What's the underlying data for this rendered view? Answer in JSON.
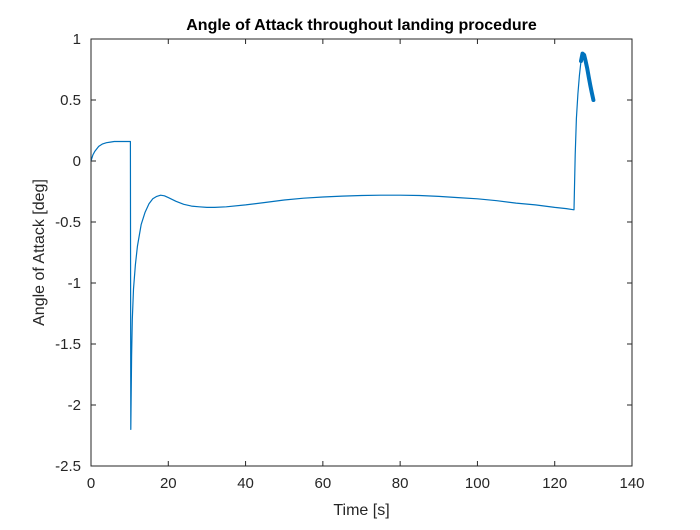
{
  "chart_data": {
    "type": "line",
    "title": "Angle of Attack throughout landing procedure",
    "xlabel": "Time [s]",
    "ylabel": "Angle of Attack [deg]",
    "xlim": [
      0,
      140
    ],
    "ylim": [
      -2.5,
      1
    ],
    "xticks": [
      0,
      20,
      40,
      60,
      80,
      100,
      120,
      140
    ],
    "yticks": [
      -2.5,
      -2,
      -1.5,
      -1,
      -0.5,
      0,
      0.5,
      1
    ],
    "xtick_labels": [
      "0",
      "20",
      "40",
      "60",
      "80",
      "100",
      "120",
      "140"
    ],
    "ytick_labels": [
      "-2.5",
      "-2",
      "-1.5",
      "-1",
      "-0.5",
      "0",
      "0.5",
      "1"
    ],
    "grid": false,
    "line_color": "#0072BD",
    "series": [
      {
        "x": [
          0,
          0.5,
          1,
          2,
          3,
          4,
          5,
          6,
          7,
          8,
          9,
          10,
          10.2,
          10.3,
          10.5,
          10.7,
          11,
          11.5,
          12,
          13,
          14,
          15,
          16,
          17,
          18,
          19,
          20,
          22,
          24,
          26,
          28,
          30,
          32,
          35,
          40,
          45,
          50,
          55,
          60,
          65,
          70,
          75,
          80,
          85,
          90,
          95,
          100,
          105,
          110,
          115,
          120,
          123,
          125,
          125.3,
          125.6,
          126,
          126.4,
          126.8,
          127.2,
          127.6,
          128,
          128.4,
          128.8,
          129.2,
          129.6,
          130
        ],
        "y": [
          0.0,
          0.05,
          0.08,
          0.12,
          0.14,
          0.15,
          0.155,
          0.16,
          0.16,
          0.16,
          0.16,
          0.16,
          0.16,
          -2.2,
          -1.6,
          -1.3,
          -1.05,
          -0.85,
          -0.7,
          -0.52,
          -0.42,
          -0.35,
          -0.31,
          -0.29,
          -0.28,
          -0.285,
          -0.3,
          -0.33,
          -0.355,
          -0.37,
          -0.375,
          -0.38,
          -0.38,
          -0.375,
          -0.36,
          -0.34,
          -0.32,
          -0.305,
          -0.295,
          -0.288,
          -0.283,
          -0.28,
          -0.28,
          -0.283,
          -0.29,
          -0.3,
          -0.31,
          -0.325,
          -0.345,
          -0.36,
          -0.38,
          -0.39,
          -0.4,
          0.05,
          0.35,
          0.55,
          0.7,
          0.82,
          0.88,
          0.87,
          0.82,
          0.76,
          0.69,
          0.62,
          0.56,
          0.5
        ]
      }
    ]
  }
}
